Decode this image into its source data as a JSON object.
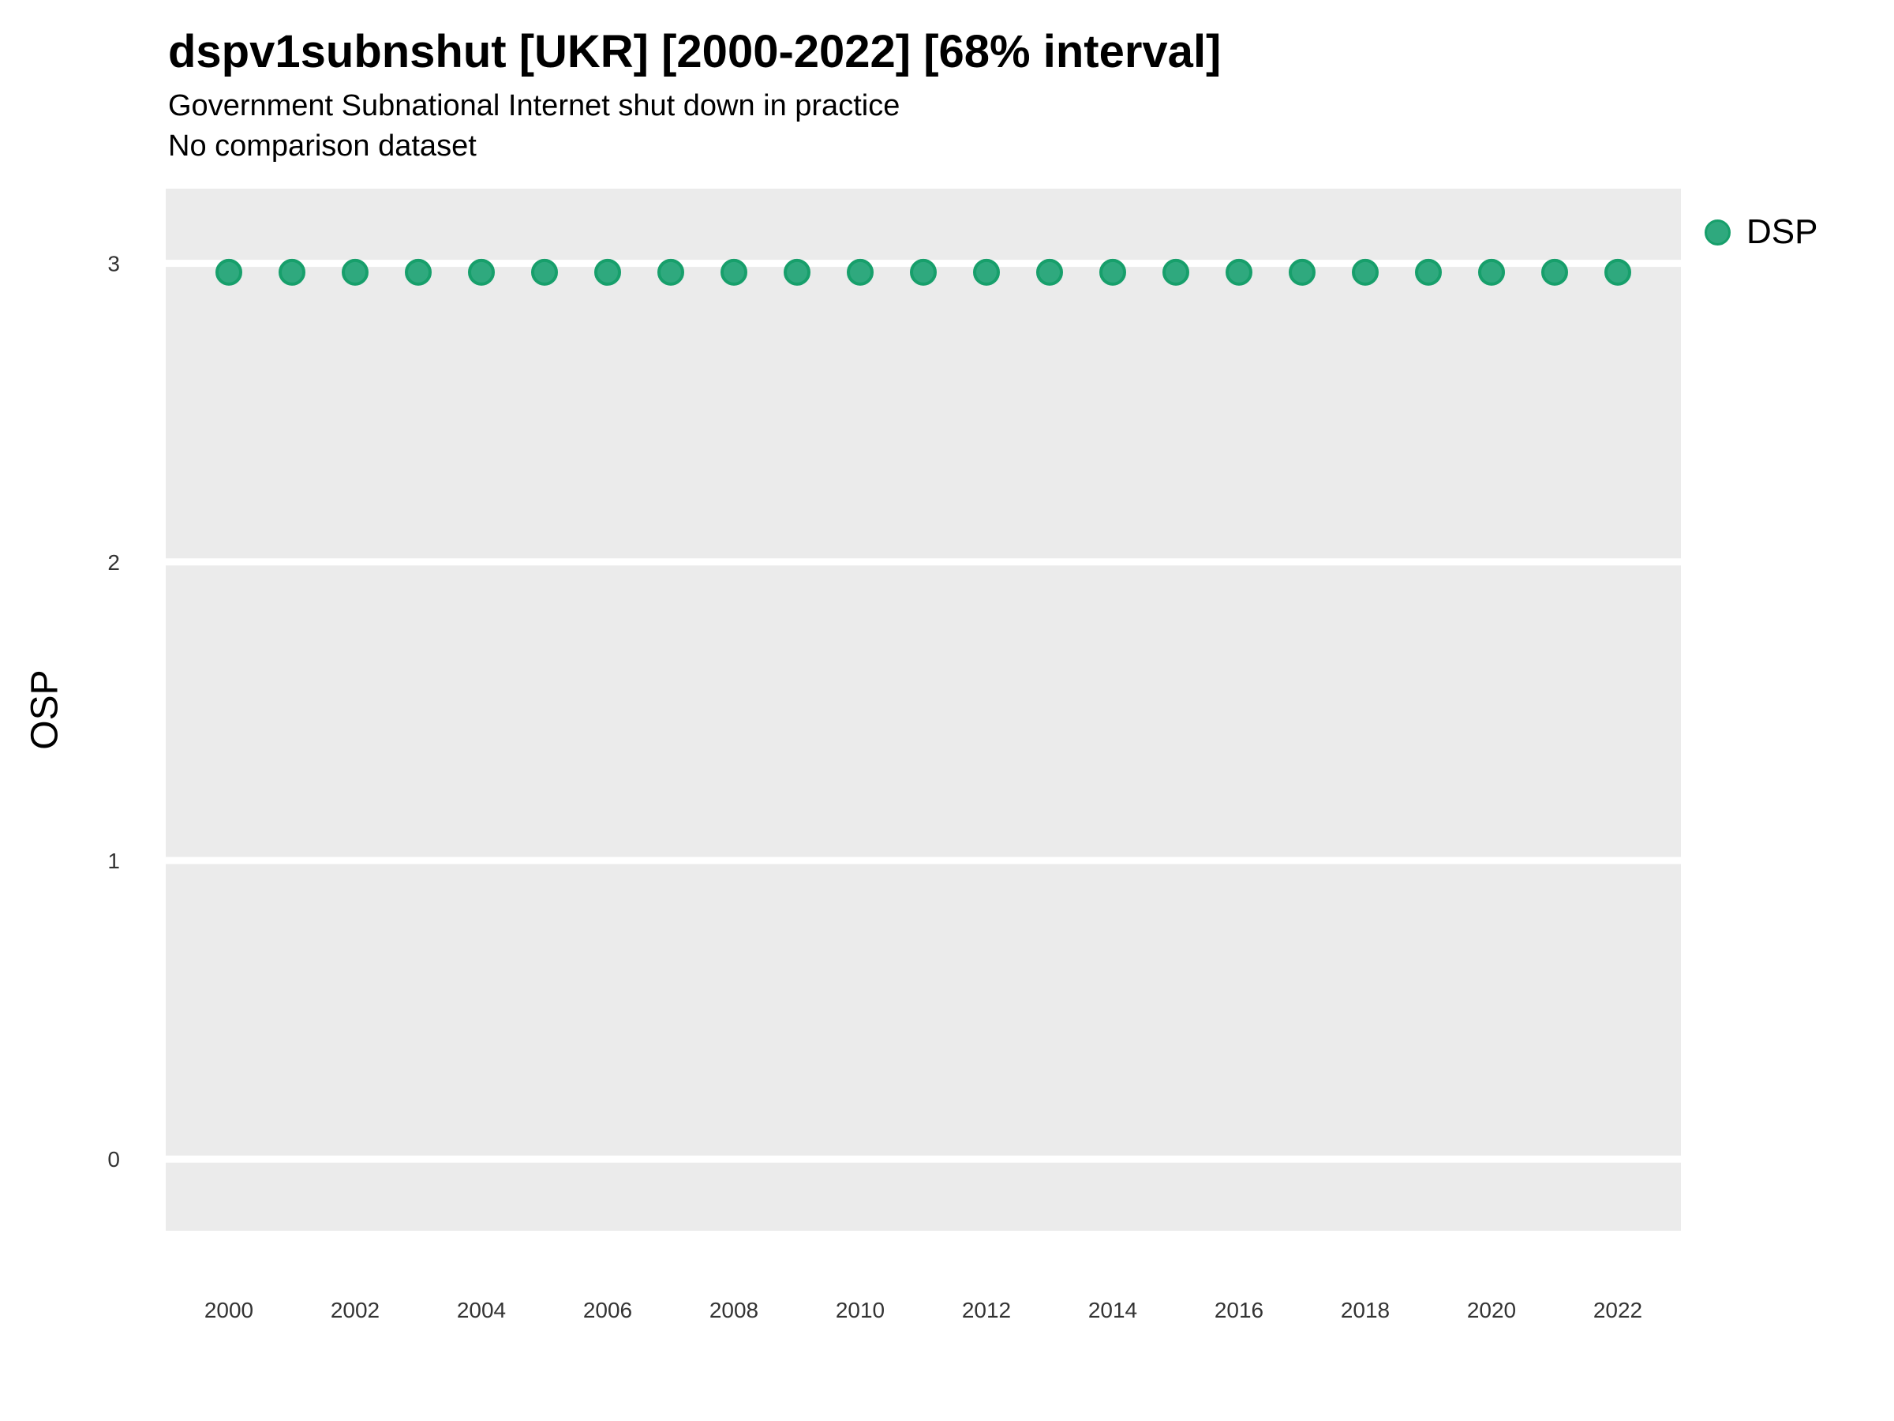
{
  "header": {
    "title": "dspv1subnshut [UKR] [2000-2022] [68% interval]",
    "subtitle": "Government Subnational Internet shut down in practice",
    "note": "No comparison dataset"
  },
  "chart_data": {
    "type": "scatter",
    "title": "dspv1subnshut [UKR] [2000-2022] [68% interval]",
    "subtitle": "Government Subnational Internet shut down in practice",
    "note": "No comparison dataset",
    "xlabel": "",
    "ylabel": "OSP",
    "x": [
      2000,
      2001,
      2002,
      2003,
      2004,
      2005,
      2006,
      2007,
      2008,
      2009,
      2010,
      2011,
      2012,
      2013,
      2014,
      2015,
      2016,
      2017,
      2018,
      2019,
      2020,
      2021,
      2022
    ],
    "series": [
      {
        "name": "DSP",
        "values": [
          2.97,
          2.97,
          2.97,
          2.97,
          2.97,
          2.97,
          2.97,
          2.97,
          2.97,
          2.97,
          2.97,
          2.97,
          2.97,
          2.97,
          2.97,
          2.97,
          2.97,
          2.97,
          2.97,
          2.97,
          2.97,
          2.97,
          2.97
        ],
        "marker_fill": "#2FA97E",
        "marker_stroke": "#179F6B"
      }
    ],
    "x_ticks": [
      2000,
      2002,
      2004,
      2006,
      2008,
      2010,
      2012,
      2014,
      2016,
      2018,
      2020,
      2022
    ],
    "y_ticks": [
      0,
      1,
      2,
      3
    ],
    "xlim": [
      1999,
      2023
    ],
    "ylim": [
      -0.24,
      3.25
    ],
    "grid": "horizontal-only",
    "panel_bg": "#EBEBEB",
    "grid_color": "#FFFFFF",
    "tick_label_color": "#333333",
    "legend_position": "right-top"
  }
}
